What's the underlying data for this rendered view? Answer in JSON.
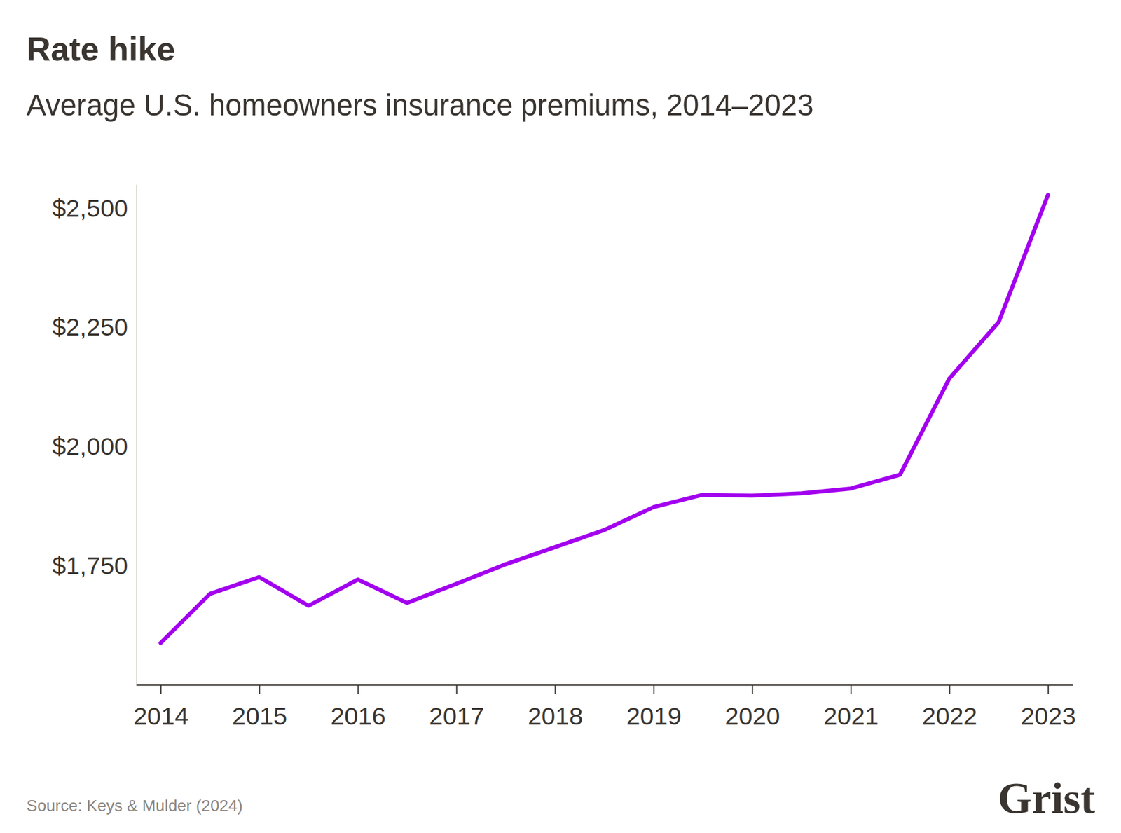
{
  "chart_data": {
    "type": "line",
    "title": "Rate hike",
    "subtitle": "Average U.S. homeowners insurance premiums, 2014–2023",
    "source": "Source: Keys & Mulder (2024)",
    "brand": "Grist",
    "x": [
      2014,
      2014.5,
      2015,
      2015.5,
      2016,
      2016.5,
      2017,
      2017.5,
      2018,
      2018.5,
      2019,
      2019.5,
      2020,
      2020.5,
      2021,
      2021.5,
      2022,
      2022.5,
      2023
    ],
    "values": [
      1588,
      1691,
      1726,
      1666,
      1721,
      1672,
      1712,
      1753,
      1789,
      1825,
      1873,
      1899,
      1897,
      1902,
      1912,
      1941,
      2143,
      2261,
      2528
    ],
    "color": "#a200ee",
    "xlim": [
      2013.75,
      2023.25
    ],
    "xticks": [
      2014,
      2015,
      2016,
      2017,
      2018,
      2019,
      2020,
      2021,
      2022,
      2023
    ],
    "ylim": [
      1500,
      2550
    ],
    "yticks": [
      {
        "value": 1750,
        "label": "$1,750"
      },
      {
        "value": 2000,
        "label": "$2,000"
      },
      {
        "value": 2250,
        "label": "$2,250"
      },
      {
        "value": 2500,
        "label": "$2,500"
      }
    ],
    "grid": false
  }
}
